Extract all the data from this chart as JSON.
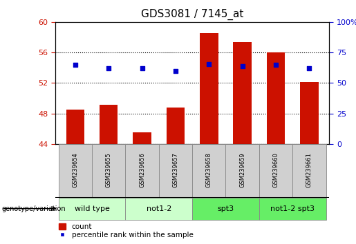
{
  "title": "GDS3081 / 7145_at",
  "samples": [
    "GSM239654",
    "GSM239655",
    "GSM239656",
    "GSM239657",
    "GSM239658",
    "GSM239659",
    "GSM239660",
    "GSM239661"
  ],
  "counts": [
    48.5,
    49.1,
    45.5,
    48.8,
    58.5,
    57.4,
    56.0,
    52.1
  ],
  "percentiles": [
    65.0,
    62.0,
    62.0,
    60.0,
    65.5,
    63.5,
    65.0,
    62.0
  ],
  "groups": [
    {
      "label": "wild type",
      "start": 0,
      "end": 2,
      "color": "#ccffcc"
    },
    {
      "label": "not1-2",
      "start": 2,
      "end": 4,
      "color": "#ccffcc"
    },
    {
      "label": "spt3",
      "start": 4,
      "end": 6,
      "color": "#66ee66"
    },
    {
      "label": "not1-2 spt3",
      "start": 6,
      "end": 8,
      "color": "#66ee66"
    }
  ],
  "ylim_left": [
    44,
    60
  ],
  "ylim_right": [
    0,
    100
  ],
  "yticks_left": [
    44,
    48,
    52,
    56,
    60
  ],
  "yticks_right": [
    0,
    25,
    50,
    75,
    100
  ],
  "bar_color": "#cc1100",
  "dot_color": "#0000cc",
  "bar_width": 0.55,
  "grid_color": "#000000",
  "left_tick_color": "#cc1100",
  "right_tick_color": "#0000cc",
  "title_fontsize": 11,
  "tick_fontsize": 8,
  "label_fontsize": 8,
  "group_label_fontsize": 8
}
